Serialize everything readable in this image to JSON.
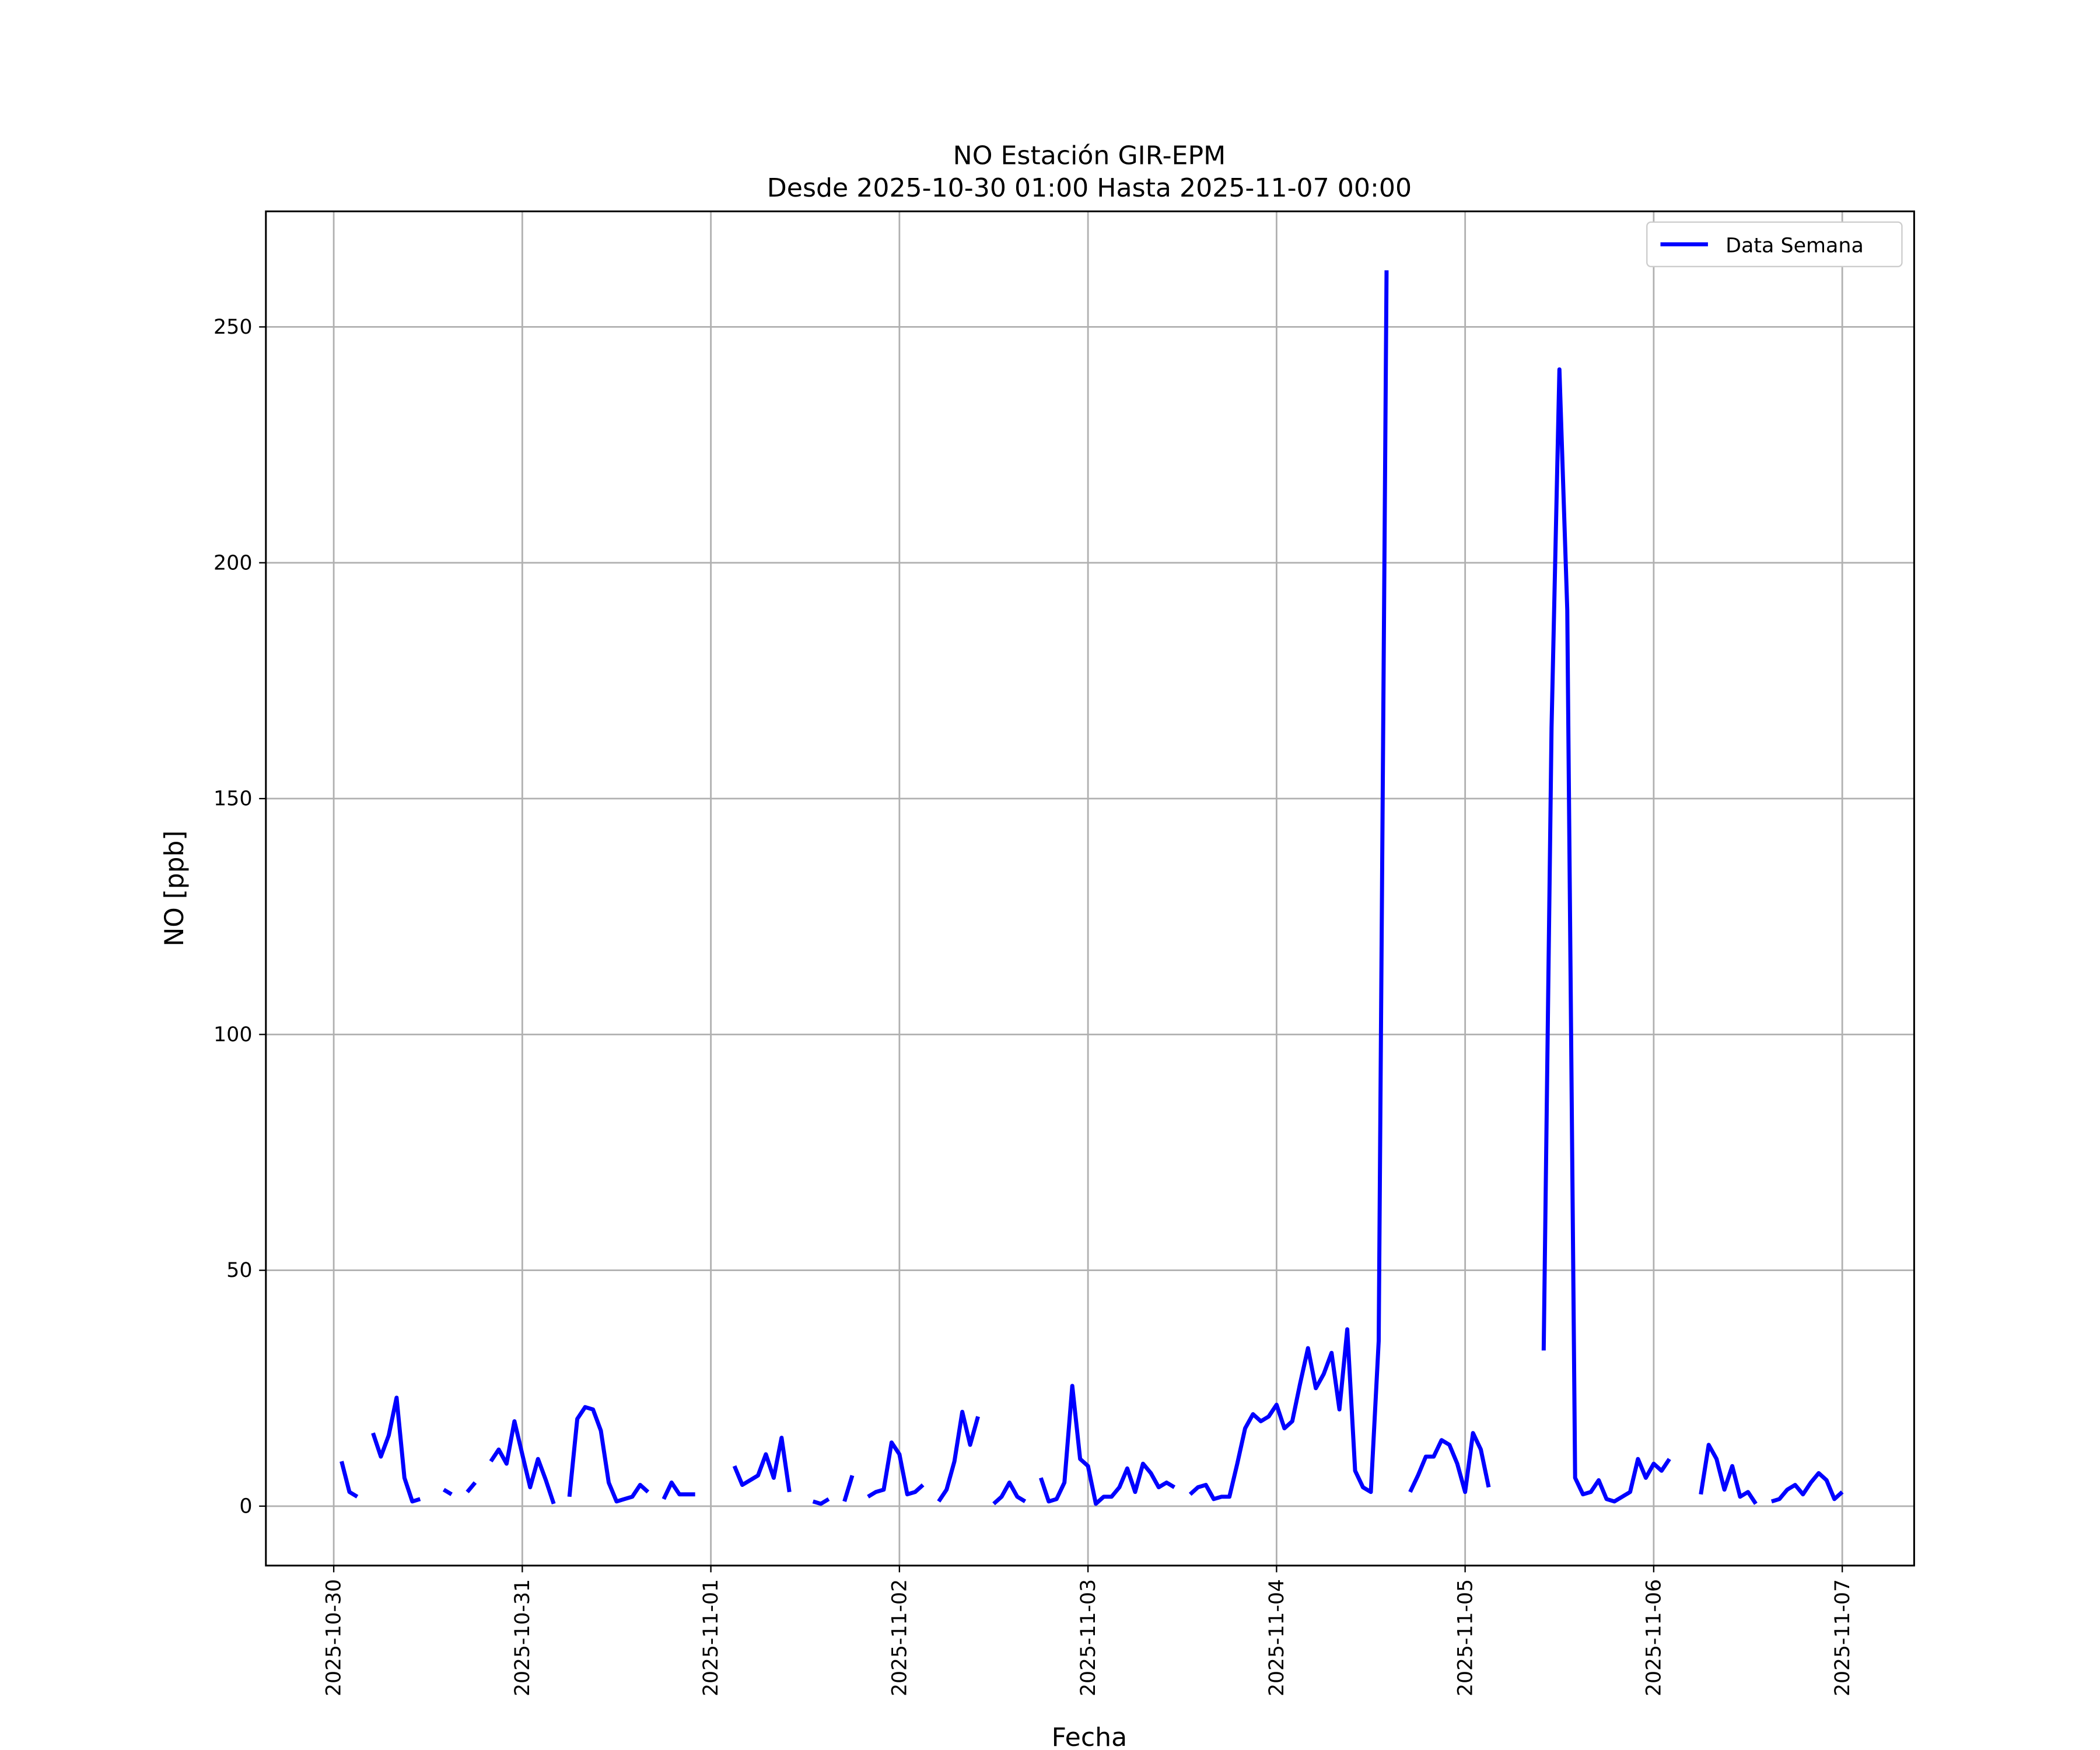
{
  "chart_data": {
    "type": "line",
    "title": "NO Estación GIR-EPM",
    "subtitle": "Desde 2025-10-30 01:00 Hasta 2025-11-07 00:00",
    "xlabel": "Fecha",
    "ylabel": "NO [ppb]",
    "x": [
      "2025-10-30 01:00",
      "2025-10-30 02:00",
      "2025-10-30 03:00",
      "2025-10-30 04:00",
      "2025-10-30 05:00",
      "2025-10-30 06:00",
      "2025-10-30 07:00",
      "2025-10-30 08:00",
      "2025-10-30 09:00",
      "2025-10-30 10:00",
      "2025-10-30 11:00",
      "2025-10-30 12:00",
      "2025-10-30 13:00",
      "2025-10-30 14:00",
      "2025-10-30 15:00",
      "2025-10-30 16:00",
      "2025-10-30 17:00",
      "2025-10-30 18:00",
      "2025-10-30 19:00",
      "2025-10-30 20:00",
      "2025-10-30 21:00",
      "2025-10-30 22:00",
      "2025-10-30 23:00",
      "2025-10-31 00:00",
      "2025-10-31 01:00",
      "2025-10-31 02:00",
      "2025-10-31 03:00",
      "2025-10-31 04:00",
      "2025-10-31 05:00",
      "2025-10-31 06:00",
      "2025-10-31 07:00",
      "2025-10-31 08:00",
      "2025-10-31 09:00",
      "2025-10-31 10:00",
      "2025-10-31 11:00",
      "2025-10-31 12:00",
      "2025-10-31 13:00",
      "2025-10-31 14:00",
      "2025-10-31 15:00",
      "2025-10-31 16:00",
      "2025-10-31 17:00",
      "2025-10-31 18:00",
      "2025-10-31 19:00",
      "2025-10-31 20:00",
      "2025-10-31 21:00",
      "2025-10-31 22:00",
      "2025-10-31 23:00",
      "2025-11-01 00:00",
      "2025-11-01 01:00",
      "2025-11-01 02:00",
      "2025-11-01 03:00",
      "2025-11-01 04:00",
      "2025-11-01 05:00",
      "2025-11-01 06:00",
      "2025-11-01 07:00",
      "2025-11-01 08:00",
      "2025-11-01 09:00",
      "2025-11-01 10:00",
      "2025-11-01 11:00",
      "2025-11-01 12:00",
      "2025-11-01 13:00",
      "2025-11-01 14:00",
      "2025-11-01 15:00",
      "2025-11-01 16:00",
      "2025-11-01 17:00",
      "2025-11-01 18:00",
      "2025-11-01 19:00",
      "2025-11-01 20:00",
      "2025-11-01 21:00",
      "2025-11-01 22:00",
      "2025-11-01 23:00",
      "2025-11-02 00:00",
      "2025-11-02 01:00",
      "2025-11-02 02:00",
      "2025-11-02 03:00",
      "2025-11-02 04:00",
      "2025-11-02 05:00",
      "2025-11-02 06:00",
      "2025-11-02 07:00",
      "2025-11-02 08:00",
      "2025-11-02 09:00",
      "2025-11-02 10:00",
      "2025-11-02 11:00",
      "2025-11-02 12:00",
      "2025-11-02 13:00",
      "2025-11-02 14:00",
      "2025-11-02 15:00",
      "2025-11-02 16:00",
      "2025-11-02 17:00",
      "2025-11-02 18:00",
      "2025-11-02 19:00",
      "2025-11-02 20:00",
      "2025-11-02 21:00",
      "2025-11-02 22:00",
      "2025-11-02 23:00",
      "2025-11-03 00:00",
      "2025-11-03 01:00",
      "2025-11-03 02:00",
      "2025-11-03 03:00",
      "2025-11-03 04:00",
      "2025-11-03 05:00",
      "2025-11-03 06:00",
      "2025-11-03 07:00",
      "2025-11-03 08:00",
      "2025-11-03 09:00",
      "2025-11-03 10:00",
      "2025-11-03 11:00",
      "2025-11-03 12:00",
      "2025-11-03 13:00",
      "2025-11-03 14:00",
      "2025-11-03 15:00",
      "2025-11-03 16:00",
      "2025-11-03 17:00",
      "2025-11-03 18:00",
      "2025-11-03 19:00",
      "2025-11-03 20:00",
      "2025-11-03 21:00",
      "2025-11-03 22:00",
      "2025-11-03 23:00",
      "2025-11-04 00:00",
      "2025-11-04 01:00",
      "2025-11-04 02:00",
      "2025-11-04 03:00",
      "2025-11-04 04:00",
      "2025-11-04 05:00",
      "2025-11-04 06:00",
      "2025-11-04 07:00",
      "2025-11-04 08:00",
      "2025-11-04 09:00",
      "2025-11-04 10:00",
      "2025-11-04 11:00",
      "2025-11-04 12:00",
      "2025-11-04 13:00",
      "2025-11-04 14:00",
      "2025-11-04 15:00",
      "2025-11-04 16:00",
      "2025-11-04 17:00",
      "2025-11-04 18:00",
      "2025-11-04 19:00",
      "2025-11-04 20:00",
      "2025-11-04 21:00",
      "2025-11-04 22:00",
      "2025-11-04 23:00",
      "2025-11-05 00:00",
      "2025-11-05 01:00",
      "2025-11-05 02:00",
      "2025-11-05 03:00",
      "2025-11-05 04:00",
      "2025-11-05 05:00",
      "2025-11-05 06:00",
      "2025-11-05 07:00",
      "2025-11-05 08:00",
      "2025-11-05 09:00",
      "2025-11-05 10:00",
      "2025-11-05 11:00",
      "2025-11-05 12:00",
      "2025-11-05 13:00",
      "2025-11-05 14:00",
      "2025-11-05 15:00",
      "2025-11-05 16:00",
      "2025-11-05 17:00",
      "2025-11-05 18:00",
      "2025-11-05 19:00",
      "2025-11-05 20:00",
      "2025-11-05 21:00",
      "2025-11-05 22:00",
      "2025-11-05 23:00",
      "2025-11-06 00:00",
      "2025-11-06 01:00",
      "2025-11-06 02:00",
      "2025-11-06 03:00",
      "2025-11-06 04:00",
      "2025-11-06 05:00",
      "2025-11-06 06:00",
      "2025-11-06 07:00",
      "2025-11-06 08:00",
      "2025-11-06 09:00",
      "2025-11-06 10:00",
      "2025-11-06 11:00",
      "2025-11-06 12:00",
      "2025-11-06 13:00",
      "2025-11-06 14:00",
      "2025-11-06 15:00",
      "2025-11-06 16:00",
      "2025-11-06 17:00",
      "2025-11-06 18:00",
      "2025-11-06 19:00",
      "2025-11-06 20:00",
      "2025-11-06 21:00",
      "2025-11-06 22:00",
      "2025-11-06 23:00",
      "2025-11-07 00:00"
    ],
    "series": [
      {
        "name": "Data Semana",
        "color": "#0000ff",
        "values": [
          9.5,
          3,
          2,
          null,
          15.5,
          10.5,
          15,
          23,
          6,
          1,
          1.5,
          null,
          null,
          3.5,
          2.5,
          null,
          3,
          5,
          null,
          9.5,
          12,
          9,
          18,
          11,
          4,
          10,
          5.5,
          0.5,
          null,
          2,
          18.5,
          21,
          20.5,
          16,
          5,
          1,
          1.5,
          2,
          4.5,
          3,
          null,
          1.5,
          5,
          2.5,
          2.5,
          2.5,
          null,
          null,
          null,
          null,
          8.5,
          4.5,
          5.5,
          6.5,
          11,
          6,
          14.5,
          3,
          null,
          null,
          1,
          0.5,
          1.5,
          null,
          1,
          6.5,
          null,
          2,
          3,
          3.5,
          13.5,
          11,
          2.5,
          3,
          4.5,
          null,
          1,
          3.5,
          9.5,
          20,
          13,
          19,
          null,
          0.5,
          2,
          5,
          2,
          1,
          null,
          6,
          1,
          1.5,
          5,
          25.5,
          10,
          8.5,
          0.5,
          2,
          2,
          4,
          8,
          3,
          9,
          7,
          4,
          5,
          4,
          null,
          2.5,
          4,
          4.5,
          1.5,
          2,
          2,
          9,
          16.5,
          19.5,
          18,
          19,
          21.5,
          16.5,
          18,
          26,
          33.5,
          25,
          28,
          32.5,
          20.5,
          37.5,
          7.5,
          4,
          3,
          35,
          262,
          null,
          null,
          3,
          6.5,
          10.5,
          10.5,
          14,
          13,
          9,
          3,
          15.5,
          12,
          4,
          null,
          null,
          null,
          null,
          null,
          null,
          33,
          165,
          241,
          190,
          6,
          2.5,
          3,
          5.5,
          1.5,
          1,
          2,
          3,
          10,
          6,
          9,
          7.5,
          10,
          null,
          null,
          null,
          2.5,
          13,
          10,
          3.5,
          8.5,
          2,
          3,
          0.5,
          null,
          1,
          1.5,
          3.5,
          4.5,
          2.5,
          5,
          7,
          5.5,
          1.5,
          3
        ]
      }
    ],
    "xlim": [
      "2025-10-29 15:22",
      "2025-11-07 09:09"
    ],
    "xticks": [
      "2025-10-30",
      "2025-10-31",
      "2025-11-01",
      "2025-11-02",
      "2025-11-03",
      "2025-11-04",
      "2025-11-05",
      "2025-11-06",
      "2025-11-07"
    ],
    "ylim": [
      -12.6,
      274.5
    ],
    "yticks": [
      0,
      50,
      100,
      150,
      200,
      250
    ],
    "grid": true,
    "legend": "upper right"
  }
}
